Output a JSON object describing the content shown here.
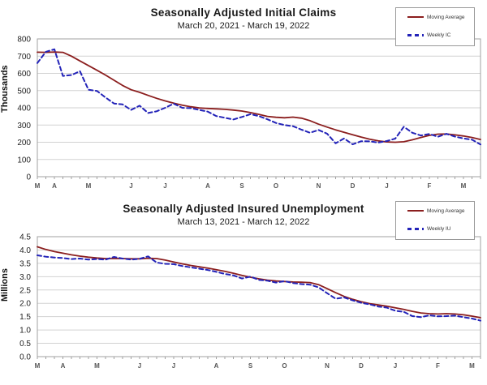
{
  "colors": {
    "moving_average": "#8b1e1e",
    "weekly": "#2323b8",
    "grid": "#d2d2d2",
    "axis": "#a0a0a0",
    "tick_text": "#222222",
    "month_text": "#555555"
  },
  "chart_data": [
    {
      "type": "line",
      "title": "Seasonally Adjusted Initial Claims",
      "subtitle": "March 20, 2021 - March 19, 2022",
      "ylabel": "Thousands",
      "ylim": [
        0,
        800
      ],
      "ytick_step": 100,
      "y_decimals": 0,
      "grid": true,
      "legend_position": "top-right",
      "month_labels": [
        "M",
        "A",
        "M",
        "J",
        "J",
        "A",
        "S",
        "O",
        "N",
        "D",
        "J",
        "F",
        "M"
      ],
      "month_indices": [
        0,
        2,
        6,
        11,
        15,
        20,
        24,
        28,
        33,
        37,
        41,
        46,
        50
      ],
      "series": [
        {
          "name": "Moving Average",
          "style": "solid",
          "values": [
            723,
            722,
            724,
            722,
            700,
            672,
            645,
            618,
            590,
            560,
            530,
            505,
            490,
            472,
            455,
            440,
            427,
            415,
            406,
            399,
            396,
            394,
            391,
            387,
            381,
            372,
            362,
            350,
            345,
            342,
            346,
            340,
            325,
            305,
            288,
            272,
            258,
            244,
            230,
            218,
            208,
            202,
            200,
            203,
            214,
            228,
            240,
            247,
            248,
            243,
            236,
            228,
            216
          ]
        },
        {
          "name": "Weekly IC",
          "style": "dashed",
          "values": [
            660,
            725,
            740,
            585,
            590,
            612,
            505,
            498,
            460,
            425,
            420,
            388,
            412,
            370,
            380,
            400,
            424,
            400,
            398,
            388,
            378,
            352,
            342,
            332,
            347,
            363,
            352,
            333,
            312,
            300,
            293,
            273,
            255,
            271,
            250,
            194,
            222,
            188,
            206,
            205,
            198,
            207,
            221,
            290,
            255,
            239,
            248,
            232,
            249,
            233,
            222,
            215,
            187
          ]
        }
      ]
    },
    {
      "type": "line",
      "title": "Seasonally Adjusted Insured Unemployment",
      "subtitle": "March 13, 2021 - March 12, 2022",
      "ylabel": "Millions",
      "ylim": [
        0,
        4.5
      ],
      "ytick_step": 0.5,
      "y_decimals": 1,
      "grid": true,
      "legend_position": "top-right",
      "month_labels": [
        "M",
        "A",
        "M",
        "J",
        "J",
        "A",
        "S",
        "O",
        "N",
        "D",
        "J",
        "F",
        "M"
      ],
      "month_indices": [
        0,
        3,
        7,
        12,
        16,
        21,
        25,
        29,
        34,
        38,
        42,
        47,
        51
      ],
      "series": [
        {
          "name": "Moving Average",
          "style": "solid",
          "values": [
            4.12,
            4.02,
            3.94,
            3.88,
            3.82,
            3.77,
            3.73,
            3.7,
            3.68,
            3.68,
            3.68,
            3.67,
            3.67,
            3.69,
            3.68,
            3.62,
            3.55,
            3.48,
            3.42,
            3.37,
            3.32,
            3.26,
            3.2,
            3.13,
            3.05,
            2.98,
            2.92,
            2.87,
            2.84,
            2.82,
            2.8,
            2.79,
            2.78,
            2.7,
            2.55,
            2.4,
            2.26,
            2.15,
            2.06,
            1.99,
            1.94,
            1.89,
            1.83,
            1.77,
            1.7,
            1.64,
            1.61,
            1.6,
            1.61,
            1.6,
            1.57,
            1.52,
            1.46
          ]
        },
        {
          "name": "Weekly IU",
          "style": "dashed",
          "values": [
            3.8,
            3.75,
            3.72,
            3.7,
            3.66,
            3.68,
            3.64,
            3.66,
            3.64,
            3.74,
            3.68,
            3.64,
            3.67,
            3.76,
            3.53,
            3.48,
            3.47,
            3.4,
            3.35,
            3.3,
            3.25,
            3.18,
            3.1,
            3.05,
            2.93,
            3.0,
            2.88,
            2.85,
            2.78,
            2.83,
            2.76,
            2.72,
            2.7,
            2.6,
            2.38,
            2.17,
            2.22,
            2.11,
            2.02,
            1.96,
            1.88,
            1.84,
            1.72,
            1.68,
            1.52,
            1.48,
            1.55,
            1.51,
            1.52,
            1.54,
            1.48,
            1.43,
            1.35
          ]
        }
      ]
    }
  ]
}
